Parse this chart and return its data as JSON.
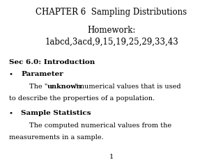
{
  "title": "CHAPTER 6  Sampling Distributions",
  "homework_line1": "Homework:",
  "homework_line2": "1abcd,3acd,9,15,19,25,29,33,43",
  "sec_header": "Sec 6.0: Introduction",
  "bullet1_header": "Parameter",
  "bullet1_text1a": "The \"",
  "bullet1_text1b": "unknown",
  "bullet1_text1c": "\" numerical values that is used",
  "bullet1_text2": "to describe the properties of a population.",
  "bullet2_header": "Sample Statistics",
  "bullet2_text1": "The computed numerical values from the",
  "bullet2_text2": "measurements in a sample.",
  "page_number": "1",
  "bg_color": "#ffffff",
  "text_color": "#000000",
  "title_fontsize": 8.5,
  "hw_fontsize": 8.5,
  "body_fontsize": 7.0,
  "header_fontsize": 7.5
}
